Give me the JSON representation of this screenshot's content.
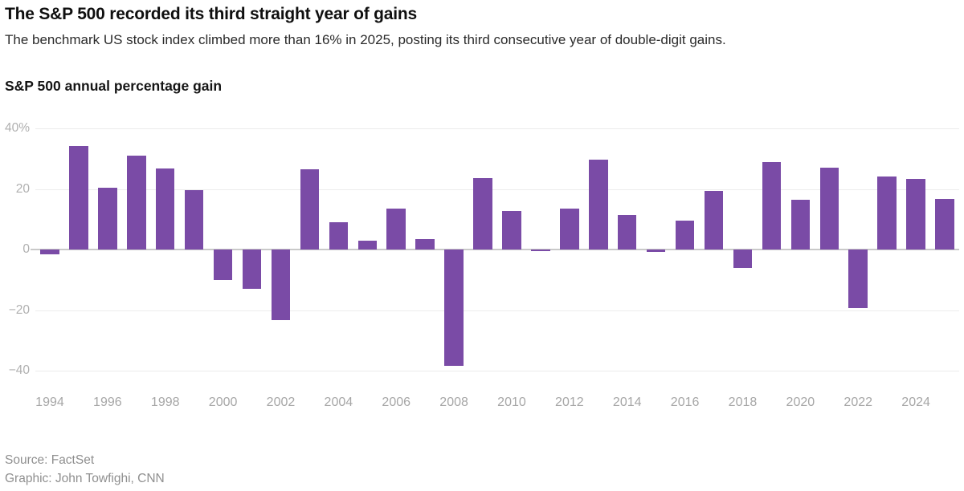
{
  "header": {
    "title": "The S&P 500 recorded its third straight year of gains",
    "subtitle": "The benchmark US stock index climbed more than 16% in 2025, posting its third consecutive year of double-digit gains."
  },
  "chart_data": {
    "type": "bar",
    "title": "S&P 500 annual percentage gain",
    "categories": [
      1994,
      1995,
      1996,
      1997,
      1998,
      1999,
      2000,
      2001,
      2002,
      2003,
      2004,
      2005,
      2006,
      2007,
      2008,
      2009,
      2010,
      2011,
      2012,
      2013,
      2014,
      2015,
      2016,
      2017,
      2018,
      2019,
      2020,
      2021,
      2022,
      2023,
      2024,
      2025
    ],
    "values": [
      -1.5,
      34.1,
      20.3,
      31.0,
      26.7,
      19.5,
      -10.1,
      -13.0,
      -23.4,
      26.4,
      9.0,
      3.0,
      13.6,
      3.5,
      -38.5,
      23.5,
      12.8,
      0.0,
      13.4,
      29.6,
      11.4,
      -0.7,
      9.5,
      19.4,
      -6.2,
      28.9,
      16.3,
      26.9,
      -19.4,
      24.2,
      23.3,
      16.6
    ],
    "xlabel": "",
    "ylabel": "",
    "ylim": [
      -40,
      40
    ],
    "grid": "horizontal",
    "legend": "none",
    "bar_color": "#7a4ba6",
    "y_ticks": [
      {
        "value": 40,
        "label": "40%"
      },
      {
        "value": 20,
        "label": "20"
      },
      {
        "value": 0,
        "label": "0"
      },
      {
        "value": -20,
        "label": "−20"
      },
      {
        "value": -40,
        "label": "−40"
      }
    ],
    "x_tick_years": [
      1994,
      1996,
      1998,
      2000,
      2002,
      2004,
      2006,
      2008,
      2010,
      2012,
      2014,
      2016,
      2018,
      2020,
      2022,
      2024
    ]
  },
  "footer": {
    "source": "Source: FactSet",
    "credit": "Graphic: John Towfighi, CNN"
  }
}
